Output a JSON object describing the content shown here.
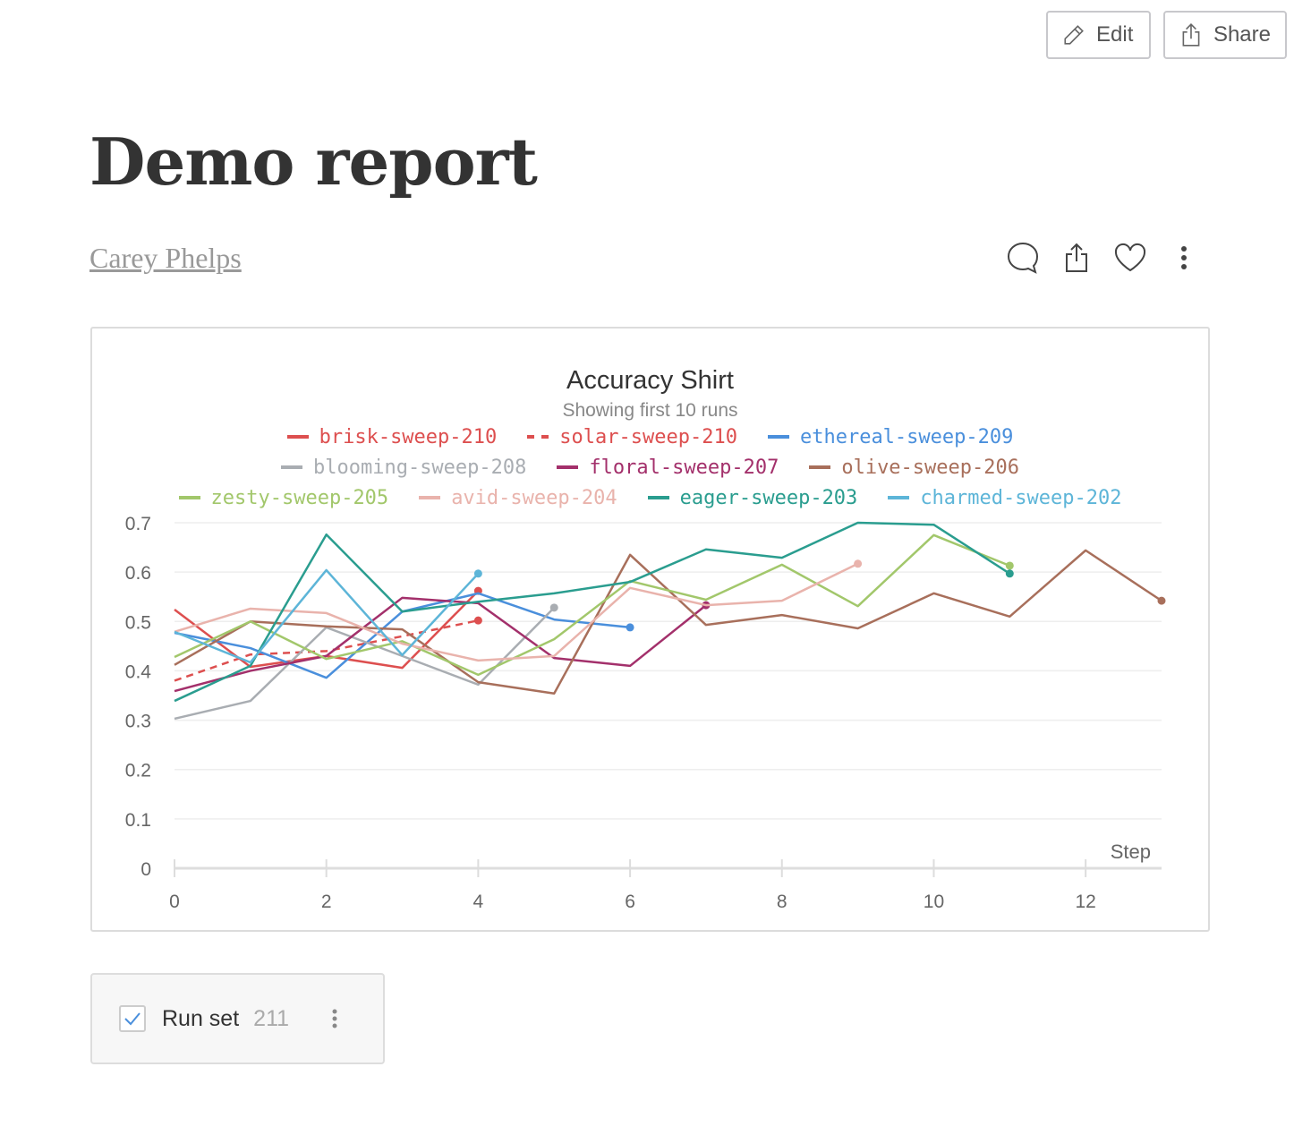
{
  "header": {
    "edit_label": "Edit",
    "share_label": "Share"
  },
  "report": {
    "title": "Demo report",
    "author": "Carey Phelps"
  },
  "actions": [
    "comment-icon",
    "share-icon",
    "heart-icon",
    "more-vertical-icon"
  ],
  "runset": {
    "label": "Run set",
    "count": "211"
  },
  "chart_data": {
    "type": "line",
    "title": "Accuracy Shirt",
    "subtitle": "Showing first 10 runs",
    "xlabel": "Step",
    "ylabel": "",
    "xlim": [
      0,
      13
    ],
    "ylim": [
      0,
      0.7
    ],
    "xticks": [
      0,
      2,
      4,
      6,
      8,
      10,
      12
    ],
    "yticks": [
      0,
      0.1,
      0.2,
      0.3,
      0.4,
      0.5,
      0.6,
      0.7
    ],
    "grid": true,
    "legend_position": "top",
    "series": [
      {
        "name": "brisk-sweep-210",
        "color": "#dd4f4f",
        "dashed": false,
        "values": [
          0.524,
          0.408,
          0.43,
          0.406,
          0.562
        ]
      },
      {
        "name": "solar-sweep-210",
        "color": "#dd4f4f",
        "dashed": true,
        "values": [
          0.38,
          0.433,
          0.44,
          0.47,
          0.502
        ]
      },
      {
        "name": "ethereal-sweep-209",
        "color": "#4a8fdc",
        "dashed": false,
        "values": [
          0.477,
          0.446,
          0.386,
          0.52,
          0.557,
          0.504,
          0.488
        ]
      },
      {
        "name": "blooming-sweep-208",
        "color": "#a9adb2",
        "dashed": false,
        "values": [
          0.303,
          0.339,
          0.488,
          0.43,
          0.372,
          0.528
        ]
      },
      {
        "name": "floral-sweep-207",
        "color": "#a3306b",
        "dashed": false,
        "values": [
          0.359,
          0.4,
          0.43,
          0.548,
          0.537,
          0.426,
          0.41,
          0.533
        ]
      },
      {
        "name": "olive-sweep-206",
        "color": "#a86f5b",
        "dashed": false,
        "values": [
          0.412,
          0.5,
          0.49,
          0.484,
          0.377,
          0.354,
          0.635,
          0.493,
          0.513,
          0.486,
          0.557,
          0.51,
          0.644,
          0.542
        ]
      },
      {
        "name": "zesty-sweep-205",
        "color": "#a2c76b",
        "dashed": false,
        "values": [
          0.428,
          0.5,
          0.424,
          0.46,
          0.392,
          0.464,
          0.582,
          0.544,
          0.615,
          0.531,
          0.675,
          0.613
        ]
      },
      {
        "name": "avid-sweep-204",
        "color": "#e9b3ac",
        "dashed": false,
        "values": [
          0.479,
          0.526,
          0.517,
          0.455,
          0.421,
          0.43,
          0.568,
          0.533,
          0.542,
          0.617
        ]
      },
      {
        "name": "eager-sweep-203",
        "color": "#2a9d8f",
        "dashed": false,
        "values": [
          0.339,
          0.41,
          0.676,
          0.52,
          0.54,
          0.557,
          0.58,
          0.646,
          0.629,
          0.7,
          0.696,
          0.597
        ]
      },
      {
        "name": "charmed-sweep-202",
        "color": "#5db5d8",
        "dashed": false,
        "values": [
          0.479,
          0.417,
          0.604,
          0.432,
          0.597
        ]
      }
    ]
  }
}
